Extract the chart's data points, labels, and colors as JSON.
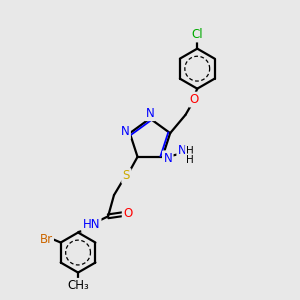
{
  "bg_color": "#e8e8e8",
  "bond_color": "#000000",
  "bond_width": 1.6,
  "atom_colors": {
    "N": "#0000ff",
    "O": "#ff0000",
    "S": "#ccaa00",
    "Cl": "#00aa00",
    "Br": "#cc6600",
    "C": "#000000",
    "H": "#000000"
  },
  "font_size": 8.5,
  "fig_bg": "#e8e8e8"
}
